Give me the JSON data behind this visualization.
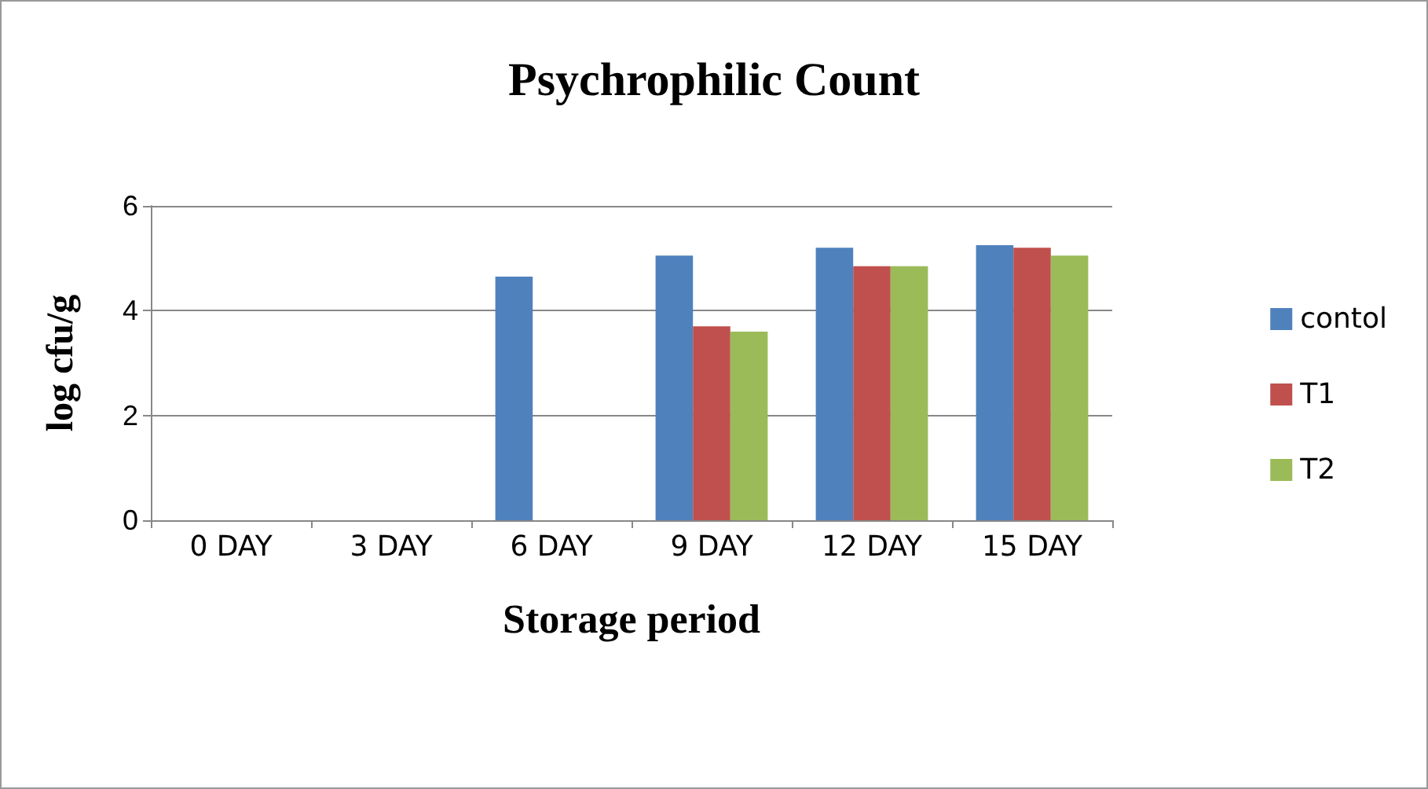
{
  "chart_data": {
    "type": "bar",
    "title": "Psychrophilic Count",
    "xlabel": "Storage period",
    "ylabel": "log cfu/g",
    "categories": [
      "0 DAY",
      "3 DAY",
      "6 DAY",
      "9 DAY",
      "12 DAY",
      "15 DAY"
    ],
    "series": [
      {
        "name": "contol",
        "color": "#4f81bd",
        "values": [
          0,
          0,
          4.65,
          5.05,
          5.2,
          5.25
        ]
      },
      {
        "name": "T1",
        "color": "#c0504d",
        "values": [
          0,
          0,
          0,
          3.7,
          4.85,
          5.2
        ]
      },
      {
        "name": "T2",
        "color": "#9bbb59",
        "values": [
          0,
          0,
          0,
          3.6,
          4.85,
          5.05
        ]
      }
    ],
    "ylim": [
      0,
      6
    ],
    "yticks": [
      0,
      2,
      4,
      6
    ],
    "grid": "y",
    "legend": "right"
  }
}
